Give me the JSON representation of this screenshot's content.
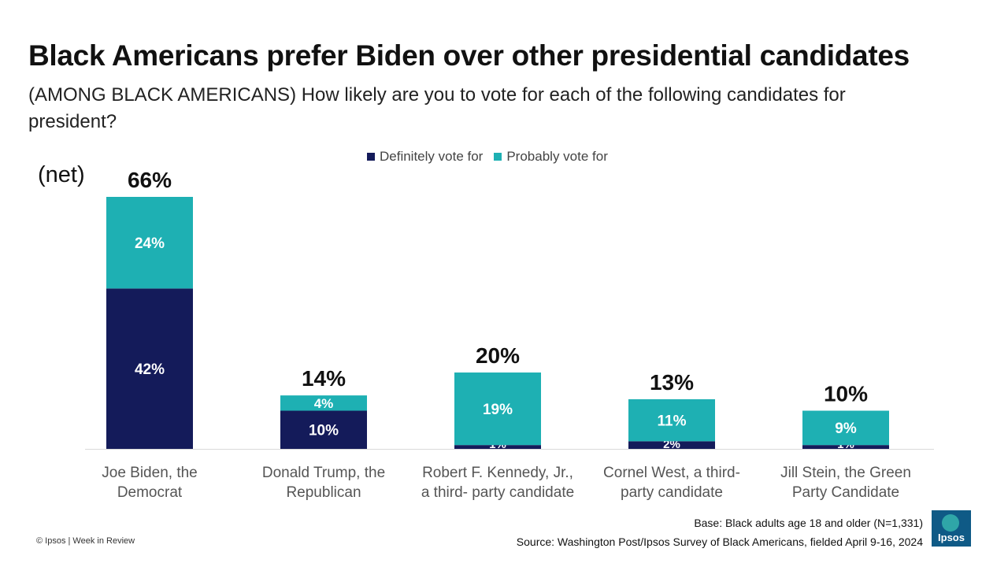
{
  "header": {
    "title": "Black Americans prefer Biden over other presidential candidates",
    "subtitle": "(AMONG BLACK AMERICANS) How likely are you to vote for each of the following candidates for president?",
    "net_label": "(net)"
  },
  "chart_data": {
    "type": "bar",
    "stacked": true,
    "categories": [
      "Joe Biden, the Democrat",
      "Donald Trump, the Republican",
      "Robert F. Kennedy, Jr., a third- party candidate",
      "Cornel West, a third- party candidate",
      "Jill Stein, the Green Party Candidate"
    ],
    "category_lines": [
      [
        "Joe Biden, the",
        "Democrat"
      ],
      [
        "Donald Trump, the",
        "Republican"
      ],
      [
        "Robert F. Kennedy, Jr.,",
        "a third- party candidate"
      ],
      [
        "Cornel West, a third-",
        "party candidate"
      ],
      [
        "Jill Stein, the Green",
        "Party Candidate"
      ]
    ],
    "series": [
      {
        "name": "Definitely vote for",
        "values": [
          42,
          10,
          1,
          2,
          1
        ],
        "color": "#141b5a"
      },
      {
        "name": "Probably vote for",
        "values": [
          24,
          4,
          19,
          11,
          9
        ],
        "color": "#1eb0b3"
      }
    ],
    "net_values": [
      66,
      14,
      20,
      13,
      10
    ],
    "value_suffix": "%",
    "ylim": [
      0,
      66
    ],
    "grid": false,
    "legend_position": "top-center"
  },
  "footer": {
    "copyright": "© Ipsos | Week in Review",
    "base": "Base: Black adults age 18 and older (N=1,331)",
    "source": "Source: Washington Post/Ipsos Survey of Black Americans, fielded April 9-16, 2024",
    "logo_text": "Ipsos"
  }
}
